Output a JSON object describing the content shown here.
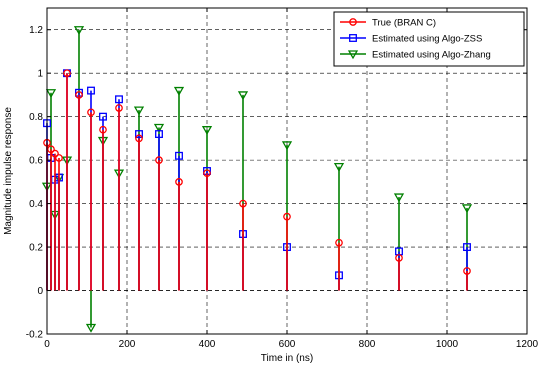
{
  "chart_data": {
    "type": "stem",
    "xlabel": "Time in (ns)",
    "ylabel": "Magnitude impulse response",
    "xlim": [
      0,
      1200
    ],
    "ylim": [
      -0.2,
      1.3
    ],
    "xticks": [
      0,
      200,
      400,
      600,
      800,
      1000,
      1200
    ],
    "yticks": [
      -0.2,
      0,
      0.2,
      0.4,
      0.6,
      0.8,
      1.0,
      1.2
    ],
    "xtick_labels": [
      "0",
      "200",
      "400",
      "600",
      "800",
      "1000",
      "1200"
    ],
    "ytick_labels": [
      "-0.2",
      "0",
      "0.2",
      "0.4",
      "0.6",
      "0.8",
      "1",
      "1.2"
    ],
    "grid": true,
    "legend_position": "top-right",
    "series": [
      {
        "name": "True (BRAN C)",
        "color": "#ff0000",
        "marker": "circle",
        "x": [
          0,
          10,
          20,
          30,
          50,
          80,
          110,
          140,
          180,
          230,
          280,
          330,
          400,
          490,
          600,
          730,
          880,
          1050
        ],
        "y": [
          0.68,
          0.65,
          0.63,
          0.61,
          1.0,
          0.9,
          0.82,
          0.74,
          0.84,
          0.7,
          0.6,
          0.5,
          0.54,
          0.4,
          0.34,
          0.22,
          0.15,
          0.09
        ]
      },
      {
        "name": "Estimated using Algo-ZSS",
        "color": "#0000ff",
        "marker": "square",
        "x": [
          0,
          10,
          20,
          30,
          50,
          80,
          110,
          140,
          180,
          230,
          280,
          330,
          400,
          490,
          600,
          730,
          880,
          1050
        ],
        "y": [
          0.77,
          0.61,
          0.51,
          0.52,
          1.0,
          0.91,
          0.92,
          0.8,
          0.88,
          0.72,
          0.72,
          0.62,
          0.55,
          0.26,
          0.2,
          0.07,
          0.18,
          0.2
        ]
      },
      {
        "name": "Estimated using Algo-Zhang",
        "color": "#008000",
        "marker": "triangle-down",
        "x": [
          0,
          10,
          20,
          30,
          50,
          80,
          110,
          140,
          180,
          230,
          280,
          330,
          400,
          490,
          600,
          730,
          880,
          1050
        ],
        "y": [
          0.48,
          0.91,
          0.35,
          0.52,
          0.6,
          1.2,
          -0.17,
          0.69,
          0.54,
          0.83,
          0.75,
          0.92,
          0.74,
          0.9,
          0.67,
          0.57,
          0.43,
          0.38
        ]
      }
    ]
  }
}
